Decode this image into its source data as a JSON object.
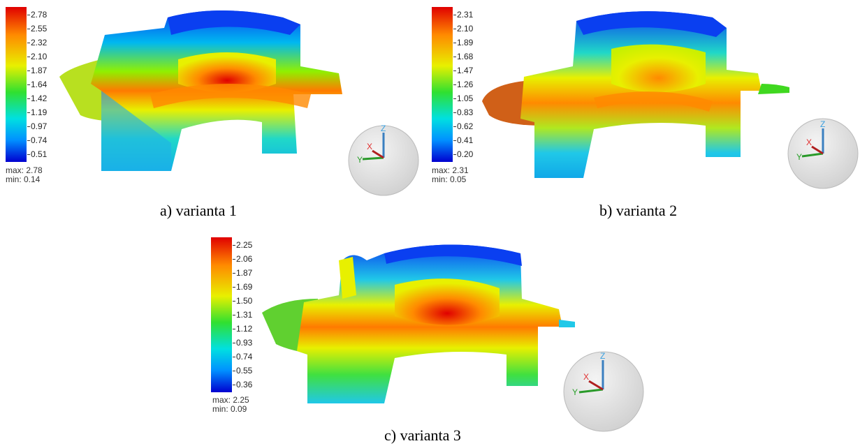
{
  "palette": [
    "#0000d0",
    "#0090ff",
    "#00e0e0",
    "#30e030",
    "#e8f000",
    "#ff8a00",
    "#e00000"
  ],
  "panels": [
    {
      "id": "a",
      "caption": "a) varianta 1",
      "max_label": "max: 2.78",
      "min_label": "min: 0.14",
      "ticks": [
        "2.78",
        "2.55",
        "2.32",
        "2.10",
        "1.87",
        "1.64",
        "1.42",
        "1.19",
        "0.97",
        "0.74",
        "0.51"
      ]
    },
    {
      "id": "b",
      "caption": "b) varianta 2",
      "max_label": "max: 2.31",
      "min_label": "min: 0.05",
      "ticks": [
        "2.31",
        "2.10",
        "1.89",
        "1.68",
        "1.47",
        "1.26",
        "1.05",
        "0.83",
        "0.62",
        "0.41",
        "0.20"
      ]
    },
    {
      "id": "c",
      "caption": "c) varianta 3",
      "max_label": "max: 2.25",
      "min_label": "min: 0.09",
      "ticks": [
        "2.25",
        "2.06",
        "1.87",
        "1.69",
        "1.50",
        "1.31",
        "1.12",
        "0.93",
        "0.74",
        "0.55",
        "0.36"
      ]
    }
  ],
  "triad": {
    "x_label": "X",
    "y_label": "Y",
    "z_label": "Z"
  }
}
